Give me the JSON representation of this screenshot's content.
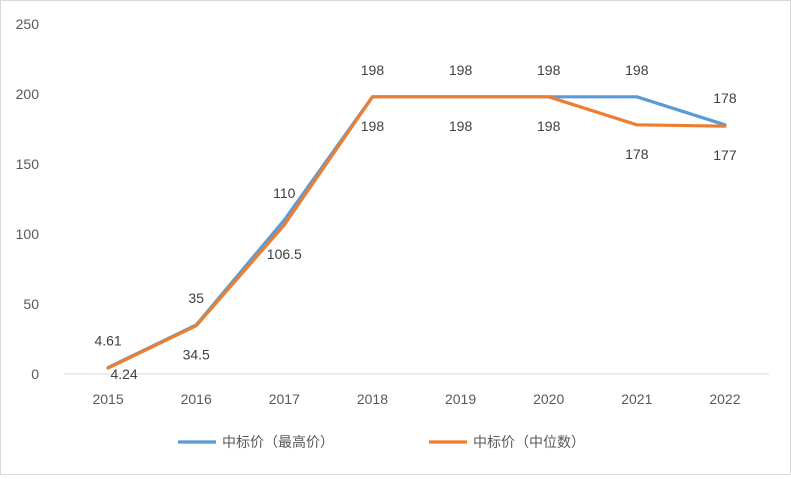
{
  "chart_data": {
    "type": "line",
    "categories": [
      "2015",
      "2016",
      "2017",
      "2018",
      "2019",
      "2020",
      "2021",
      "2022"
    ],
    "series": [
      {
        "name": "中标价（最高价）",
        "color": "#5b9bd5",
        "values": [
          4.61,
          35,
          110,
          198,
          198,
          198,
          198,
          178
        ],
        "labels": [
          "4.61",
          "35",
          "110",
          "198",
          "198",
          "198",
          "198",
          "178"
        ]
      },
      {
        "name": "中标价（中位数）",
        "color": "#ed7d31",
        "values": [
          4.24,
          34.5,
          106.5,
          198,
          198,
          198,
          178,
          177
        ],
        "labels": [
          "4.24",
          "34.5",
          "106.5",
          "198",
          "198",
          "198",
          "178",
          "177"
        ]
      }
    ],
    "ylim": [
      0,
      250
    ],
    "yticks": [
      "0",
      "50",
      "100",
      "150",
      "200",
      "250"
    ],
    "grid": false,
    "legend_position": "bottom"
  }
}
